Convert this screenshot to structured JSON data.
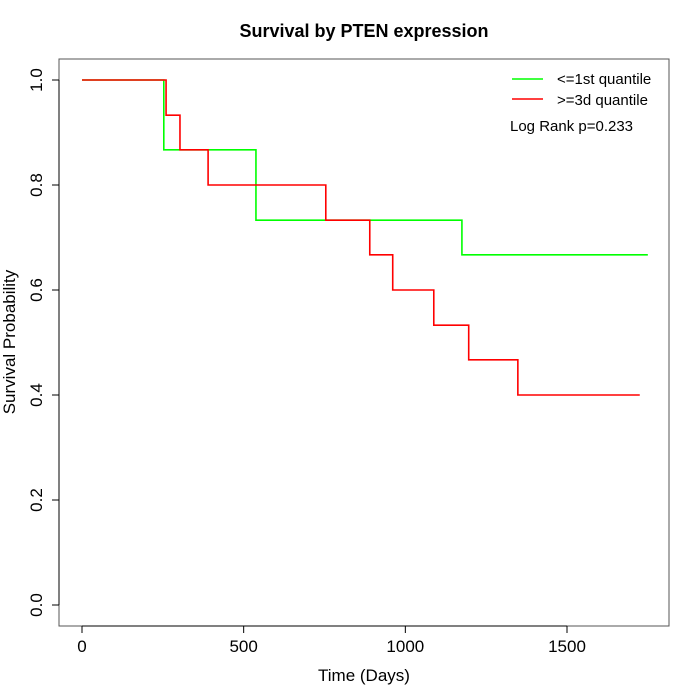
{
  "chart_data": {
    "type": "line",
    "subtype": "kaplan-meier-step",
    "title": "Survival by PTEN expression",
    "xlabel": "Time (Days)",
    "ylabel": "Survival Probability",
    "xlim": [
      0,
      1750
    ],
    "ylim": [
      0,
      1.0
    ],
    "x_ticks": [
      0,
      500,
      1000,
      1500
    ],
    "x_tick_labels": [
      "0",
      "500",
      "1000",
      "1500"
    ],
    "y_ticks": [
      0.0,
      0.2,
      0.4,
      0.6,
      0.8,
      1.0
    ],
    "y_tick_labels": [
      "0.0",
      "0.2",
      "0.4",
      "0.6",
      "0.8",
      "1.0"
    ],
    "grid": false,
    "legend_position": "top-right",
    "series": [
      {
        "name": "<=1st quantile",
        "color": "#00ff00",
        "x": [
          0,
          253,
          538,
          1175,
          1750
        ],
        "y": [
          1.0,
          0.867,
          0.733,
          0.667,
          0.667
        ]
      },
      {
        "name": ">=3d quantile",
        "color": "#ff0000",
        "x": [
          0,
          260,
          303,
          390,
          754,
          890,
          961,
          1088,
          1196,
          1348,
          1725
        ],
        "y": [
          1.0,
          0.933,
          0.867,
          0.8,
          0.733,
          0.667,
          0.6,
          0.533,
          0.467,
          0.4,
          0.4
        ]
      }
    ],
    "annotation": "Log Rank p=0.233"
  }
}
